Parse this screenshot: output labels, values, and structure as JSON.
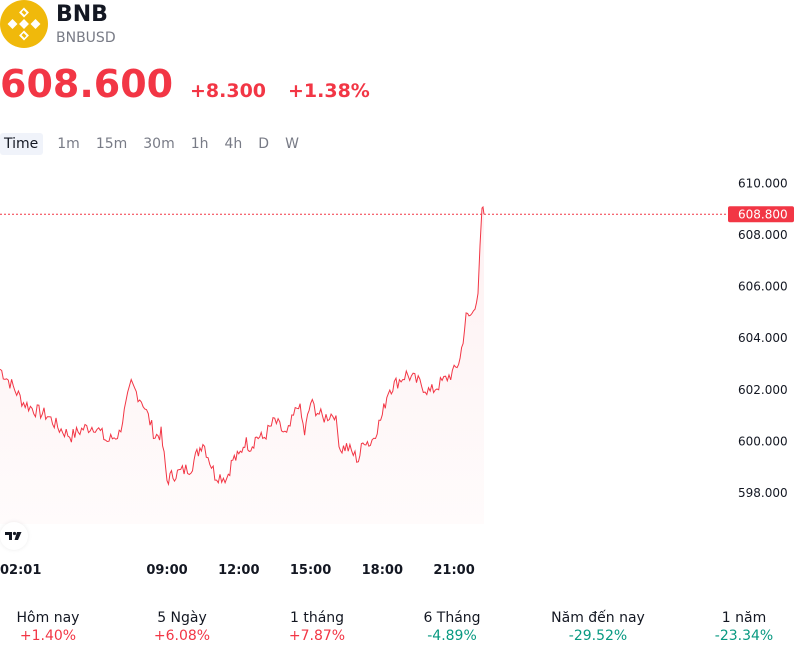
{
  "header": {
    "symbol": "BNB",
    "pair": "BNBUSD",
    "logo_icon": "binance-coin-logo-icon",
    "logo_color": "#f0b90b"
  },
  "quote": {
    "price": "608.600",
    "change": "+8.300",
    "change_percent": "+1.38%",
    "color": "#f23645"
  },
  "intervals": [
    {
      "label": "Time",
      "active": true
    },
    {
      "label": "1m",
      "active": false
    },
    {
      "label": "15m",
      "active": false
    },
    {
      "label": "30m",
      "active": false
    },
    {
      "label": "1h",
      "active": false
    },
    {
      "label": "4h",
      "active": false
    },
    {
      "label": "D",
      "active": false
    },
    {
      "label": "W",
      "active": false
    }
  ],
  "branding": {
    "icon": "tradingview-logo-icon"
  },
  "chart_data": {
    "type": "area",
    "series": [
      {
        "x": [
          "02:01",
          "02:30",
          "03:00",
          "03:30",
          "04:00",
          "04:30",
          "05:00",
          "05:30",
          "06:00",
          "06:30",
          "07:00",
          "07:30",
          "08:00",
          "08:30",
          "08:45",
          "09:00",
          "09:15",
          "09:30",
          "10:00",
          "10:15",
          "10:30",
          "11:00",
          "11:30",
          "11:45",
          "12:00",
          "12:15",
          "12:30",
          "12:45",
          "13:00",
          "13:30",
          "14:00",
          "14:30",
          "14:45",
          "15:00",
          "15:30",
          "16:00",
          "16:15",
          "16:30",
          "17:00",
          "17:15",
          "17:30",
          "18:00",
          "18:15",
          "18:30",
          "19:00",
          "19:30",
          "20:00",
          "20:30",
          "21:00",
          "21:15",
          "21:30",
          "21:45",
          "22:00",
          "22:10",
          "22:15"
        ],
        "values": [
          602.8,
          602.2,
          601.5,
          601.2,
          601.0,
          600.5,
          600.2,
          600.5,
          600.6,
          600.0,
          600.3,
          602.2,
          601.5,
          600.2,
          600.3,
          598.5,
          598.7,
          598.8,
          599.0,
          599.5,
          600.0,
          598.7,
          598.6,
          599.3,
          599.4,
          600.0,
          599.8,
          600.2,
          600.1,
          600.8,
          600.2,
          601.5,
          600.3,
          601.5,
          600.9,
          601.1,
          599.7,
          599.8,
          599.3,
          600.1,
          599.9,
          601.0,
          602.0,
          602.2,
          602.6,
          602.3,
          601.9,
          602.3,
          602.7,
          603.2,
          604.8,
          604.9,
          605.8,
          608.9,
          608.8
        ]
      }
    ],
    "last_value": "608.800",
    "y_ticks": [
      "610.000",
      "608.000",
      "606.000",
      "604.000",
      "602.000",
      "600.000",
      "598.000"
    ],
    "x_ticks": [
      "02:01",
      "09:00",
      "12:00",
      "15:00",
      "18:00",
      "21:00"
    ],
    "ylim": [
      596.8,
      610.4
    ],
    "line_color": "#f23645",
    "fill_color": "#fdf3f4",
    "grid": false
  },
  "performance": [
    {
      "label": "Hôm nay",
      "value": "+1.40%",
      "color": "#f23645"
    },
    {
      "label": "5 Ngày",
      "value": "+6.08%",
      "color": "#f23645"
    },
    {
      "label": "1 tháng",
      "value": "+7.87%",
      "color": "#f23645"
    },
    {
      "label": "6 Tháng",
      "value": "-4.89%",
      "color": "#089981"
    },
    {
      "label": "Năm đến nay",
      "value": "-29.52%",
      "color": "#089981"
    },
    {
      "label": "1 năm",
      "value": "-23.34%",
      "color": "#089981"
    }
  ]
}
